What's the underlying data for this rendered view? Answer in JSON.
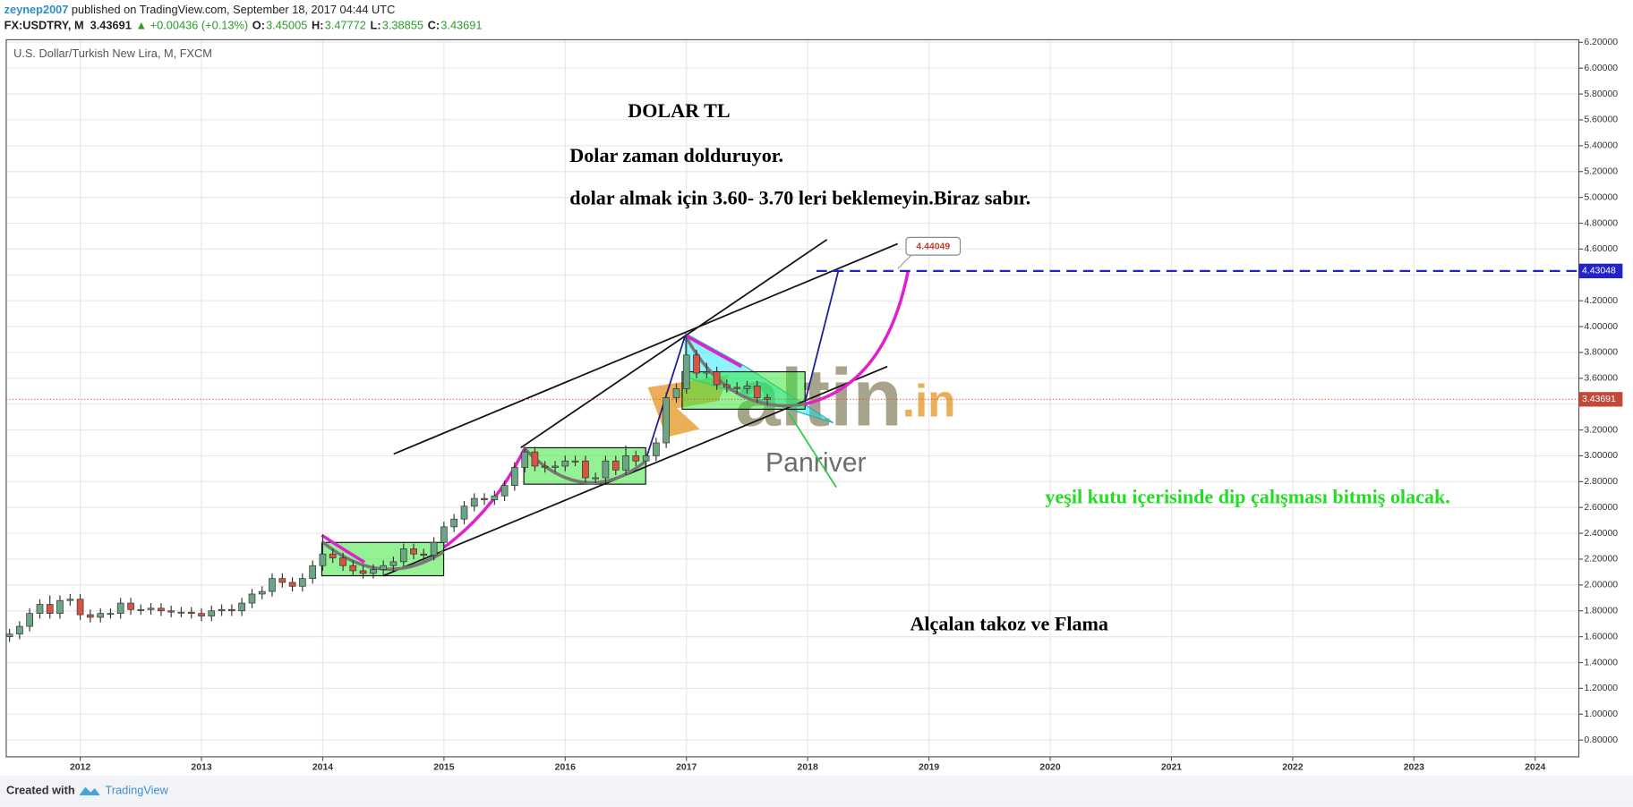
{
  "header": {
    "user": "zeynep2007",
    "published": "published on TradingView.com, September 18, 2017 04:44 UTC",
    "symbol": "FX:USDTRY, M",
    "change": "▲ +0.00436 (+0.13%)",
    "ohlc_labels": [
      "O:",
      "H:",
      "L:",
      "C:"
    ]
  },
  "footer": {
    "created": "Created with",
    "brand": "TradingView"
  },
  "watermark": {
    "logo": "altin",
    "logo_suffix": ".in",
    "sub": "Panriver"
  },
  "chart_data": {
    "type": "candlestick",
    "title": "U.S. Dollar/Turkish New Lira, M, FXCM",
    "up_color": "#6ba583",
    "down_color": "#d75442",
    "grid": true,
    "x": [
      2011.417,
      2011.5,
      2011.583,
      2011.667,
      2011.75,
      2011.833,
      2011.917,
      2012,
      2012.083,
      2012.167,
      2012.25,
      2012.333,
      2012.417,
      2012.5,
      2012.583,
      2012.667,
      2012.75,
      2012.833,
      2012.917,
      2013,
      2013.083,
      2013.167,
      2013.25,
      2013.333,
      2013.417,
      2013.5,
      2013.583,
      2013.667,
      2013.75,
      2013.833,
      2013.917,
      2014,
      2014.083,
      2014.167,
      2014.25,
      2014.333,
      2014.417,
      2014.5,
      2014.583,
      2014.667,
      2014.75,
      2014.833,
      2014.917,
      2015,
      2015.083,
      2015.167,
      2015.25,
      2015.333,
      2015.417,
      2015.5,
      2015.583,
      2015.667,
      2015.75,
      2015.833,
      2015.917,
      2016,
      2016.083,
      2016.167,
      2016.25,
      2016.333,
      2016.417,
      2016.5,
      2016.583,
      2016.667,
      2016.75,
      2016.833,
      2016.917,
      2017,
      2017.083,
      2017.167,
      2017.25,
      2017.333,
      2017.417,
      2017.5,
      2017.583,
      2017.667
    ],
    "open": [
      1.6,
      1.62,
      1.68,
      1.78,
      1.85,
      1.78,
      1.88,
      1.89,
      1.77,
      1.75,
      1.78,
      1.78,
      1.86,
      1.81,
      1.81,
      1.82,
      1.8,
      1.79,
      1.79,
      1.78,
      1.76,
      1.8,
      1.81,
      1.8,
      1.86,
      1.93,
      1.95,
      2.05,
      2.02,
      1.99,
      2.05,
      2.15,
      2.24,
      2.21,
      2.15,
      2.11,
      2.09,
      2.12,
      2.15,
      2.18,
      2.28,
      2.24,
      2.23,
      2.33,
      2.45,
      2.51,
      2.61,
      2.67,
      2.66,
      2.69,
      2.77,
      2.91,
      3.03,
      2.92,
      2.91,
      2.92,
      2.96,
      2.96,
      2.83,
      2.83,
      2.96,
      2.89,
      3.0,
      2.96,
      3.0,
      3.1,
      3.45,
      3.52,
      3.78,
      3.64,
      3.65,
      3.55,
      3.53,
      3.52,
      3.54,
      3.45005
    ],
    "high": [
      1.66,
      1.72,
      1.82,
      1.89,
      1.92,
      1.92,
      1.93,
      1.93,
      1.81,
      1.82,
      1.82,
      1.9,
      1.9,
      1.85,
      1.86,
      1.86,
      1.84,
      1.83,
      1.83,
      1.82,
      1.84,
      1.85,
      1.85,
      1.9,
      1.97,
      1.99,
      2.09,
      2.09,
      2.06,
      2.09,
      2.19,
      2.39,
      2.28,
      2.25,
      2.19,
      2.15,
      2.16,
      2.19,
      2.22,
      2.32,
      2.32,
      2.28,
      2.37,
      2.49,
      2.55,
      2.65,
      2.71,
      2.71,
      2.73,
      2.81,
      2.95,
      3.07,
      3.07,
      2.96,
      2.96,
      3.0,
      3.0,
      3.0,
      2.87,
      3.0,
      3.0,
      3.08,
      3.04,
      3.04,
      3.14,
      3.49,
      3.56,
      3.94,
      3.82,
      3.72,
      3.69,
      3.59,
      3.57,
      3.58,
      3.58,
      3.47772
    ],
    "low": [
      1.56,
      1.58,
      1.64,
      1.74,
      1.74,
      1.74,
      1.84,
      1.73,
      1.71,
      1.71,
      1.74,
      1.74,
      1.77,
      1.77,
      1.77,
      1.76,
      1.75,
      1.75,
      1.74,
      1.72,
      1.72,
      1.76,
      1.76,
      1.76,
      1.82,
      1.89,
      1.91,
      1.98,
      1.95,
      1.95,
      2.01,
      2.11,
      2.17,
      2.11,
      2.07,
      2.05,
      2.05,
      2.08,
      2.11,
      2.14,
      2.2,
      2.19,
      2.19,
      2.29,
      2.41,
      2.47,
      2.57,
      2.62,
      2.62,
      2.65,
      2.73,
      2.87,
      2.88,
      2.87,
      2.87,
      2.88,
      2.92,
      2.79,
      2.79,
      2.79,
      2.85,
      2.85,
      2.92,
      2.92,
      2.96,
      3.06,
      3.41,
      3.48,
      3.6,
      3.6,
      3.51,
      3.49,
      3.48,
      3.48,
      3.41,
      3.38855
    ],
    "close": [
      1.62,
      1.68,
      1.78,
      1.85,
      1.78,
      1.88,
      1.89,
      1.77,
      1.75,
      1.78,
      1.78,
      1.86,
      1.81,
      1.81,
      1.82,
      1.8,
      1.79,
      1.79,
      1.78,
      1.76,
      1.8,
      1.81,
      1.8,
      1.86,
      1.93,
      1.95,
      2.05,
      2.02,
      1.99,
      2.05,
      2.15,
      2.24,
      2.21,
      2.15,
      2.11,
      2.09,
      2.12,
      2.15,
      2.18,
      2.28,
      2.24,
      2.23,
      2.33,
      2.45,
      2.51,
      2.61,
      2.67,
      2.66,
      2.69,
      2.77,
      2.91,
      3.03,
      2.92,
      2.91,
      2.92,
      2.96,
      2.96,
      2.83,
      2.83,
      2.96,
      2.89,
      3.0,
      2.96,
      3.0,
      3.1,
      3.45,
      3.52,
      3.78,
      3.64,
      3.65,
      3.55,
      3.53,
      3.52,
      3.54,
      3.45,
      3.43691
    ],
    "xlim": [
      2011.39,
      2024.36
    ],
    "xticks": [
      2012,
      2013,
      2014,
      2015,
      2016,
      2017,
      2018,
      2019,
      2020,
      2021,
      2022,
      2023,
      2024
    ],
    "ylim": [
      0.67,
      6.22
    ],
    "yticks": [
      {
        "value": 0.8,
        "label": "0.80000"
      },
      {
        "value": 1.0,
        "label": "1.00000"
      },
      {
        "value": 1.2,
        "label": "1.20000"
      },
      {
        "value": 1.4,
        "label": "1.40000"
      },
      {
        "value": 1.6,
        "label": "1.60000"
      },
      {
        "value": 1.8,
        "label": "1.80000"
      },
      {
        "value": 2.0,
        "label": "2.00000"
      },
      {
        "value": 2.2,
        "label": "2.20000"
      },
      {
        "value": 2.4,
        "label": "2.40000"
      },
      {
        "value": 2.6,
        "label": "2.60000"
      },
      {
        "value": 2.8,
        "label": "2.80000"
      },
      {
        "value": 3.0,
        "label": "3.00000"
      },
      {
        "value": 3.2,
        "label": "3.20000"
      },
      {
        "value": 3.4,
        "label": "3.40000"
      },
      {
        "value": 3.6,
        "label": "3.60000"
      },
      {
        "value": 3.8,
        "label": "3.80000"
      },
      {
        "value": 4.0,
        "label": "4.00000"
      },
      {
        "value": 4.2,
        "label": "4.20000"
      },
      {
        "value": 4.4,
        "label": "4.40000"
      },
      {
        "value": 4.6,
        "label": "4.60000"
      },
      {
        "value": 4.8,
        "label": "4.80000"
      },
      {
        "value": 5.0,
        "label": "5.00000"
      },
      {
        "value": 5.2,
        "label": "5.20000"
      },
      {
        "value": 5.4,
        "label": "5.40000"
      },
      {
        "value": 5.6,
        "label": "5.60000"
      },
      {
        "value": 5.8,
        "label": "5.80000"
      },
      {
        "value": 6.0,
        "label": "6.00000"
      },
      {
        "value": 6.2,
        "label": "6.20000"
      }
    ],
    "target_line": {
      "value": 4.43048,
      "color": "#2323c8"
    },
    "callout": {
      "value": 4.44049
    },
    "annotations": [
      "DOLAR TL",
      "Dolar zaman dolduruyor.",
      "dolar almak için 3.60- 3.70 leri beklemeyin.Biraz sabır.",
      "yeşil kutu içerisinde dip çalışması bitmiş olacak.",
      "Alçalan takoz ve Flama"
    ]
  }
}
